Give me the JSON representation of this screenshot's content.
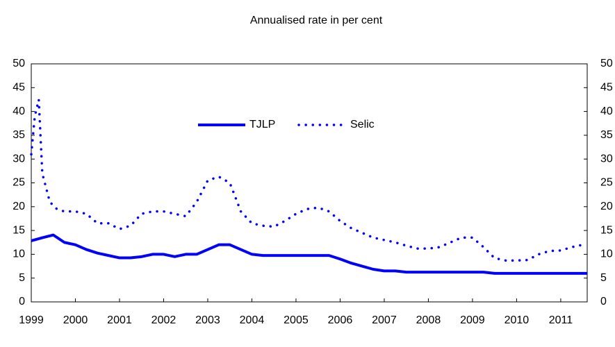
{
  "chart_data": {
    "type": "line",
    "title": "Annualised rate in per cent",
    "xlim": [
      1999,
      2011.6
    ],
    "xticks": [
      1999,
      2000,
      2001,
      2002,
      2003,
      2004,
      2005,
      2006,
      2007,
      2008,
      2009,
      2010,
      2011
    ],
    "ylim": [
      0,
      50
    ],
    "yticks": [
      0,
      5,
      10,
      15,
      20,
      25,
      30,
      35,
      40,
      45,
      50
    ],
    "y2lim": [
      0,
      50
    ],
    "y2ticks": [
      0,
      5,
      10,
      15,
      20,
      25,
      30,
      35,
      40,
      45,
      50
    ],
    "legend": "top-center",
    "series": [
      {
        "name": "TJLP",
        "color": "#0000ff",
        "style": "solid",
        "x": [
          1999,
          1999.25,
          1999.5,
          1999.75,
          2000,
          2000.25,
          2000.5,
          2000.75,
          2001,
          2001.25,
          2001.5,
          2001.75,
          2002,
          2002.25,
          2002.5,
          2002.75,
          2003,
          2003.25,
          2003.5,
          2003.75,
          2004,
          2004.25,
          2004.5,
          2004.75,
          2005,
          2005.25,
          2005.5,
          2005.75,
          2006,
          2006.25,
          2006.5,
          2006.75,
          2007,
          2007.25,
          2007.5,
          2007.75,
          2008,
          2008.25,
          2008.5,
          2008.75,
          2009,
          2009.25,
          2009.5,
          2009.75,
          2010,
          2010.25,
          2010.5,
          2010.75,
          2011,
          2011.25,
          2011.5,
          2011.6
        ],
        "values": [
          12.84,
          13.48,
          14.05,
          12.5,
          12,
          11,
          10.25,
          9.75,
          9.25,
          9.25,
          9.5,
          10,
          10,
          9.5,
          10,
          10,
          11,
          12,
          12,
          11,
          10,
          9.75,
          9.75,
          9.75,
          9.75,
          9.75,
          9.75,
          9.75,
          9,
          8.15,
          7.5,
          6.85,
          6.5,
          6.5,
          6.25,
          6.25,
          6.25,
          6.25,
          6.25,
          6.25,
          6.25,
          6.25,
          6,
          6,
          6,
          6,
          6,
          6,
          6,
          6,
          6,
          6
        ]
      },
      {
        "name": "Selic",
        "color": "#0000ff",
        "style": "dotted",
        "x": [
          1999,
          1999.08,
          1999.17,
          1999.25,
          1999.42,
          1999.58,
          1999.75,
          2000,
          2000.25,
          2000.5,
          2000.75,
          2001,
          2001.25,
          2001.5,
          2001.75,
          2002,
          2002.25,
          2002.5,
          2002.75,
          2003,
          2003.25,
          2003.5,
          2003.75,
          2004,
          2004.25,
          2004.5,
          2004.75,
          2005,
          2005.25,
          2005.5,
          2005.75,
          2006,
          2006.25,
          2006.5,
          2006.75,
          2007,
          2007.25,
          2007.5,
          2007.75,
          2008,
          2008.25,
          2008.5,
          2008.75,
          2009,
          2009.25,
          2009.5,
          2009.75,
          2010,
          2010.25,
          2010.5,
          2010.75,
          2011,
          2011.25,
          2011.5
        ],
        "values": [
          31,
          39,
          42.5,
          27,
          21,
          19.5,
          19,
          19,
          18.5,
          16.5,
          16.5,
          15.3,
          16,
          18.5,
          19,
          19,
          18.5,
          18,
          21,
          25.5,
          26.3,
          25,
          19,
          16.5,
          16,
          15.8,
          17,
          18.5,
          19.5,
          19.8,
          19,
          17,
          15.5,
          14.5,
          13.5,
          13,
          12.5,
          11.8,
          11.2,
          11.2,
          11.5,
          12.5,
          13.5,
          13.5,
          11.5,
          9.2,
          8.7,
          8.7,
          8.8,
          10,
          10.7,
          10.8,
          11.5,
          12
        ]
      }
    ]
  }
}
